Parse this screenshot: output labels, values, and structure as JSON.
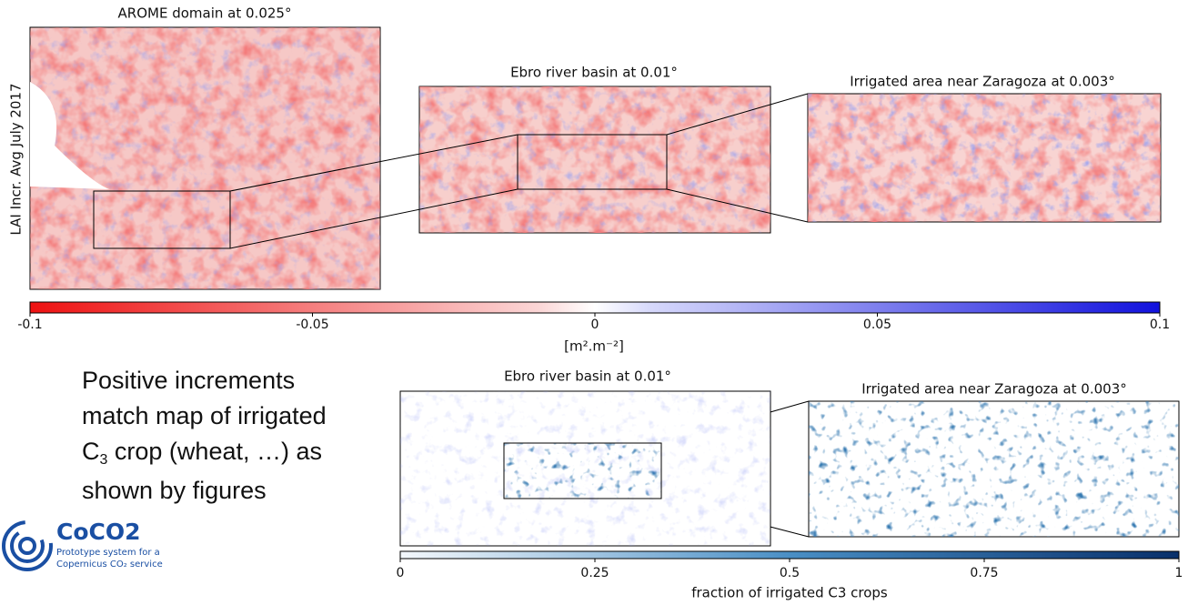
{
  "panels": {
    "arome": {
      "title": "AROME domain at 0.025°"
    },
    "ebro_lai": {
      "title": "Ebro river basin at 0.01°"
    },
    "zaragoza_lai": {
      "title": "Irrigated area near Zaragoza at 0.003°"
    },
    "ebro_irr": {
      "title": "Ebro river basin at 0.01°"
    },
    "zaragoza_irr": {
      "title": "Irrigated area near Zaragoza at 0.003°"
    }
  },
  "y_label": "LAI Incr. Avg July 2017",
  "lai_colorbar": {
    "lim": [
      -0.1,
      0.1
    ],
    "ticks": [
      -0.1,
      -0.05,
      0,
      0.05,
      0.1
    ],
    "label": "[m².m⁻²]"
  },
  "irr_colorbar": {
    "lim": [
      0,
      1
    ],
    "ticks": [
      0,
      0.25,
      0.5,
      0.75,
      1
    ],
    "label": "fraction of irrigated C3 crops"
  },
  "note": {
    "line1": "Positive increments",
    "line2": "match map of irrigated",
    "line3_c": "C",
    "line3_sub": "3",
    "line3_rest": " crop (wheat, …) as",
    "line4": "shown by figures"
  },
  "logo": {
    "name": "CoCO2",
    "tagline1": "Prototype system for a",
    "tagline2": "Copernicus CO₂ service"
  }
}
